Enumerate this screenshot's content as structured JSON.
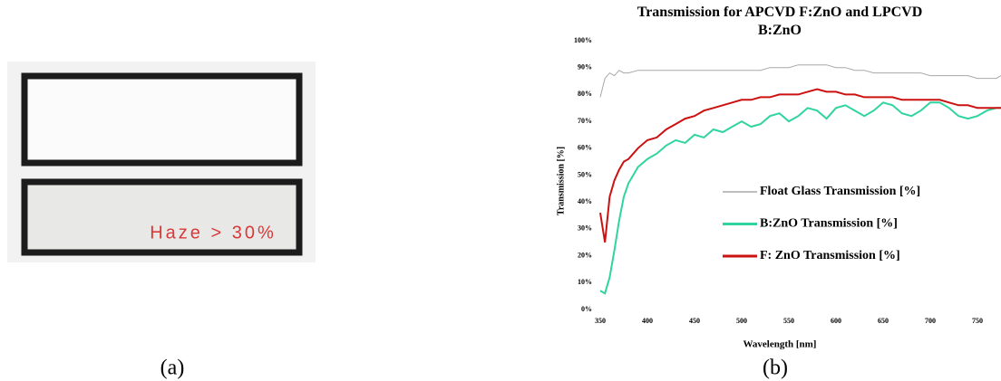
{
  "photo": {
    "label": "Haze > 30%"
  },
  "captions": [
    "(a)",
    "(b)"
  ],
  "chart_data": {
    "type": "line",
    "title": "Transmission for APCVD F:ZnO and LPCVD B:ZnO",
    "x_label": "Wavelength [nm]",
    "y_label": "Transmission [%]",
    "x": [
      350,
      355,
      360,
      365,
      370,
      375,
      380,
      390,
      400,
      410,
      420,
      430,
      440,
      450,
      460,
      470,
      480,
      490,
      500,
      510,
      520,
      530,
      540,
      550,
      560,
      570,
      580,
      590,
      600,
      610,
      620,
      630,
      640,
      650,
      660,
      670,
      680,
      690,
      700,
      710,
      720,
      730,
      740,
      750,
      760,
      770,
      775
    ],
    "series": [
      {
        "name": "Float Glass Transmission [%]",
        "color": "#a8a8a8",
        "values": [
          79,
          86,
          88,
          87,
          89,
          88,
          88,
          89,
          89,
          89,
          89,
          89,
          89,
          89,
          89,
          89,
          89,
          89,
          89,
          89,
          89,
          90,
          90,
          90,
          91,
          91,
          91,
          91,
          90,
          90,
          89,
          89,
          88,
          88,
          88,
          88,
          88,
          88,
          87,
          87,
          87,
          87,
          87,
          86,
          86,
          86,
          87
        ]
      },
      {
        "name": "B:ZnO Transmission [%]",
        "color": "#2fd4a0",
        "values": [
          7,
          6,
          12,
          22,
          33,
          42,
          47,
          53,
          56,
          58,
          61,
          63,
          62,
          65,
          64,
          67,
          66,
          68,
          70,
          68,
          69,
          72,
          73,
          70,
          72,
          75,
          74,
          71,
          75,
          76,
          74,
          72,
          74,
          77,
          76,
          73,
          72,
          74,
          77,
          77,
          75,
          72,
          71,
          72,
          74,
          75,
          75
        ]
      },
      {
        "name": "F: ZnO Transmission [%]",
        "color": "#cc1111",
        "values": [
          36,
          25,
          42,
          48,
          52,
          55,
          56,
          60,
          63,
          64,
          67,
          69,
          71,
          72,
          74,
          75,
          76,
          77,
          78,
          78,
          79,
          79,
          80,
          80,
          80,
          81,
          82,
          81,
          81,
          80,
          80,
          79,
          79,
          79,
          79,
          78,
          78,
          78,
          78,
          78,
          77,
          76,
          76,
          75,
          75,
          75,
          75
        ]
      }
    ],
    "xlim": [
      350,
      775
    ],
    "ylim": [
      0,
      100
    ],
    "xticks": [
      350,
      400,
      450,
      500,
      550,
      600,
      650,
      700,
      750
    ],
    "yticks": [
      {
        "value": 0,
        "label": "0%"
      },
      {
        "value": 10,
        "label": "10%"
      },
      {
        "value": 20,
        "label": "20%"
      },
      {
        "value": 30,
        "label": "30%"
      },
      {
        "value": 40,
        "label": "40%"
      },
      {
        "value": 50,
        "label": "50%"
      },
      {
        "value": 60,
        "label": "60%"
      },
      {
        "value": 70,
        "label": "70%"
      },
      {
        "value": 80,
        "label": "80%"
      },
      {
        "value": 90,
        "label": "90%"
      },
      {
        "value": 100,
        "label": "100%"
      }
    ],
    "grid": false
  }
}
